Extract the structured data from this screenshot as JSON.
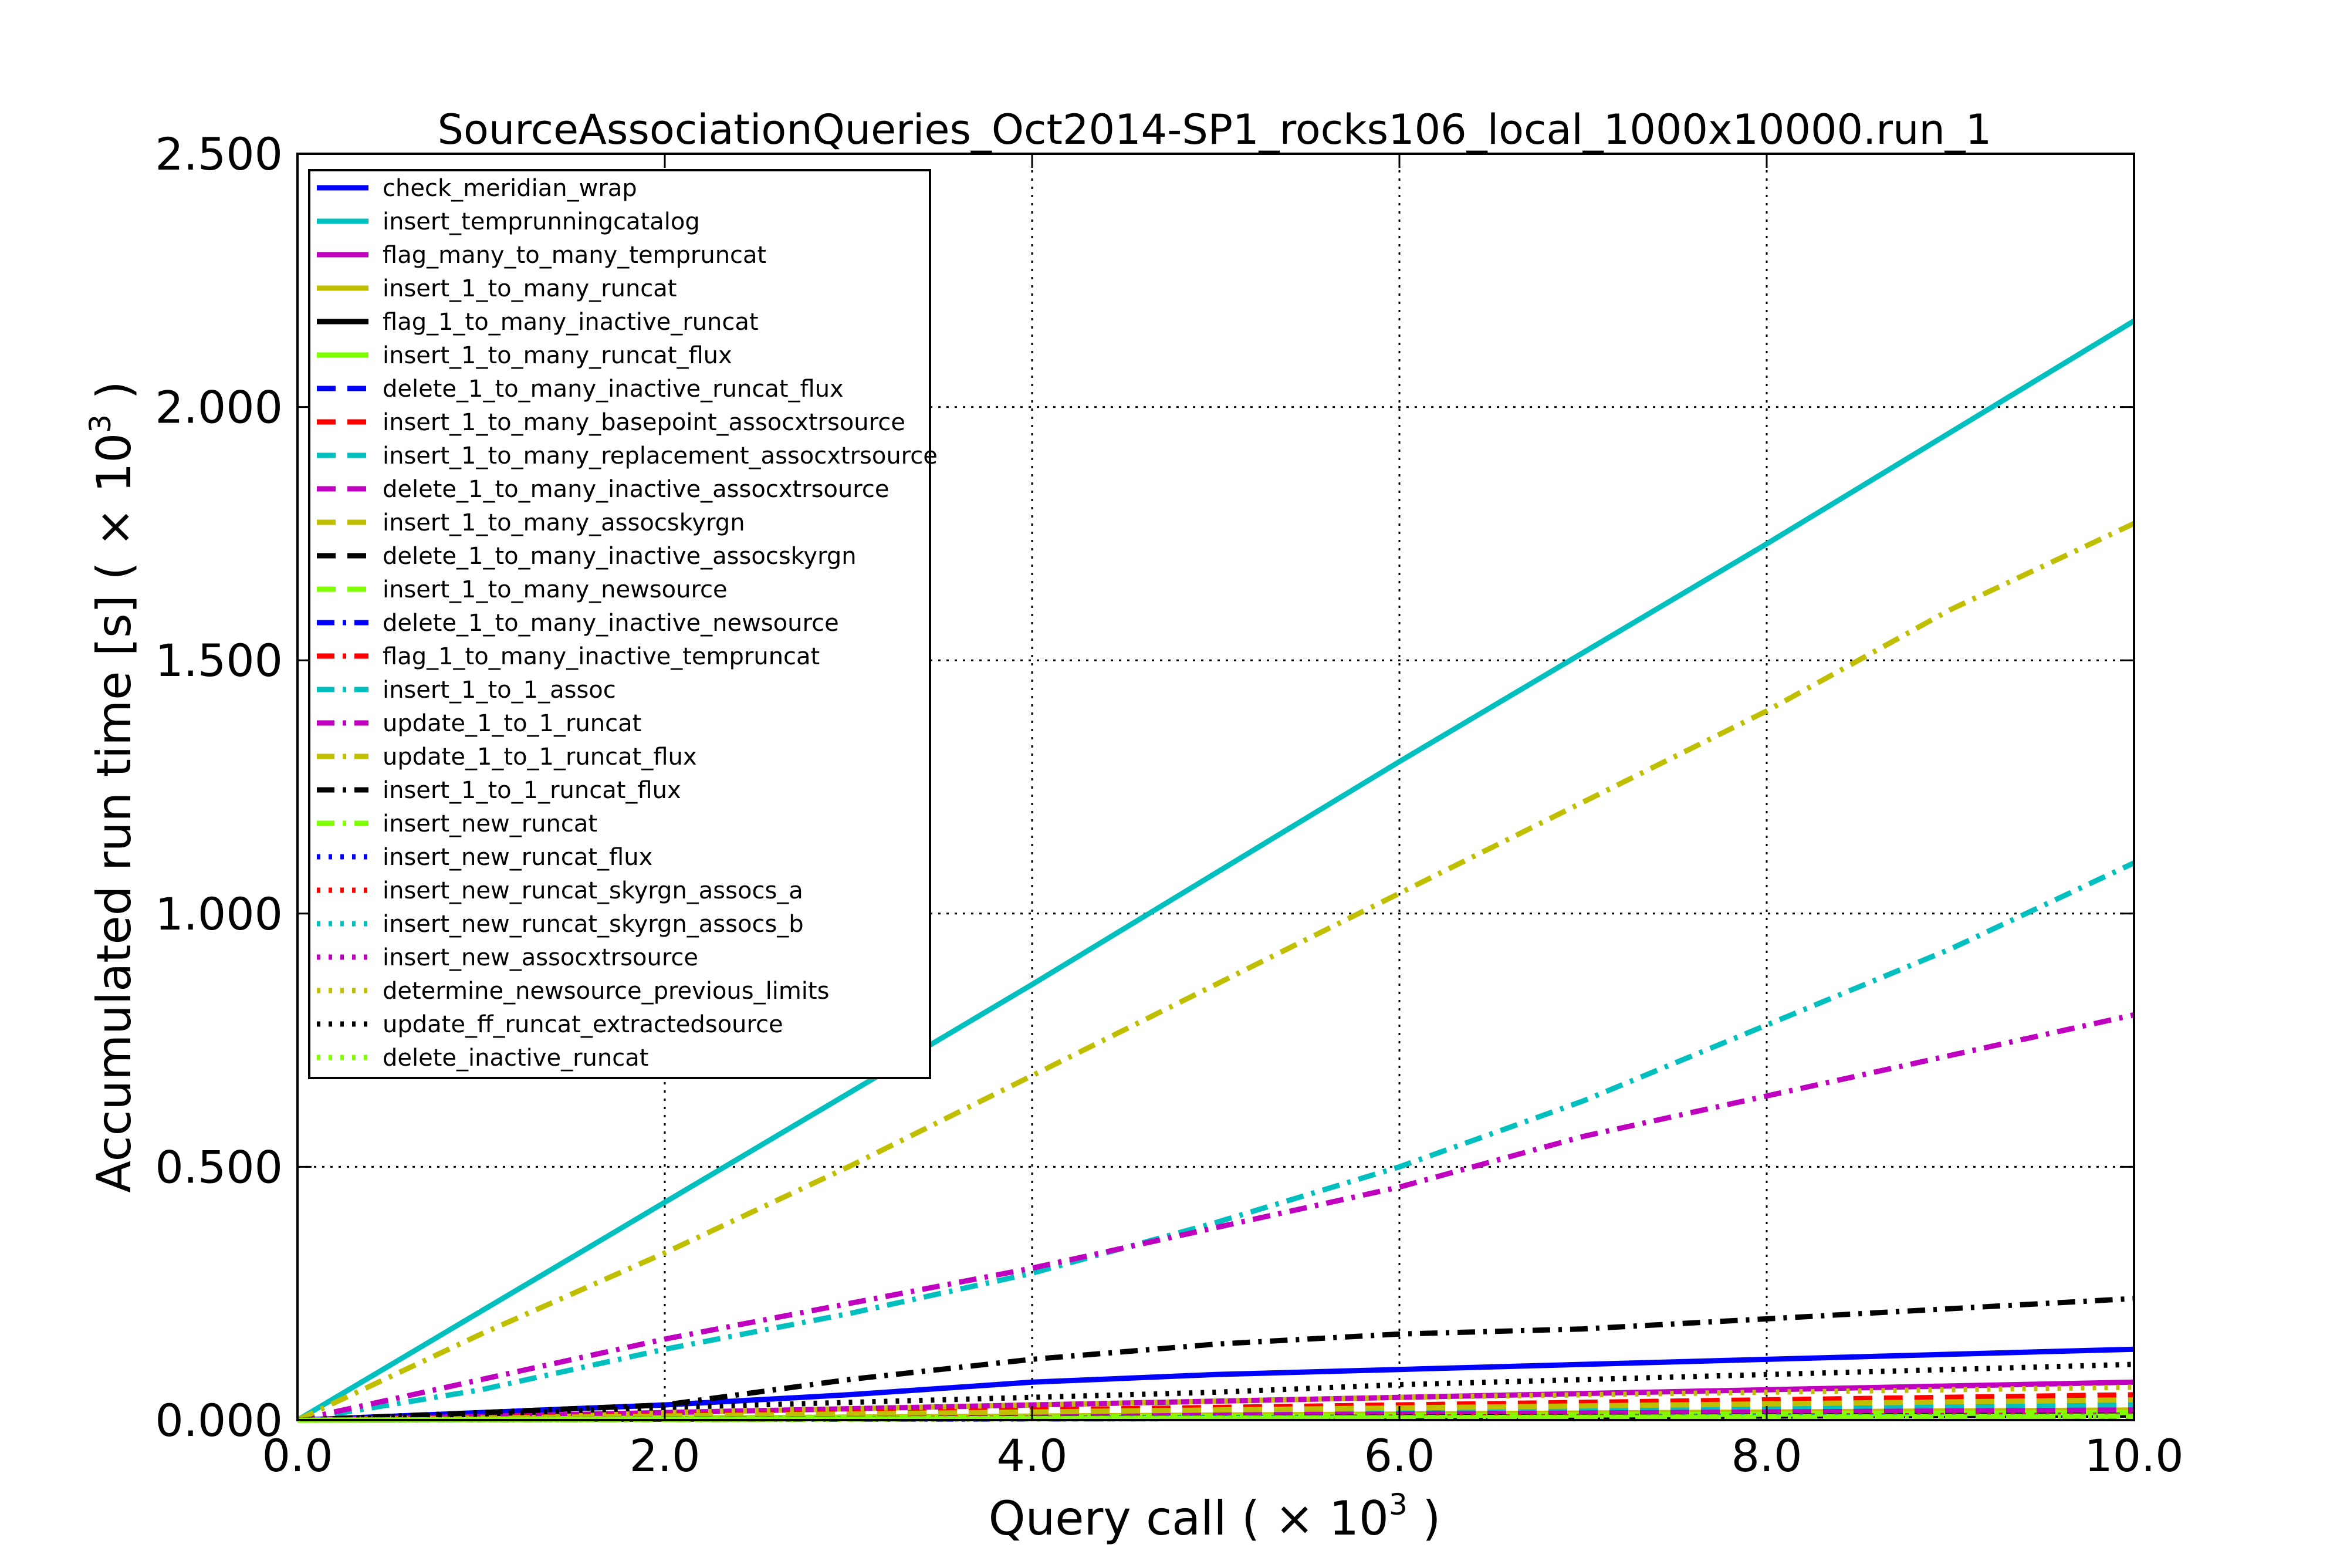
{
  "chart_data": {
    "type": "line",
    "title": "SourceAssociationQueries_Oct2014-SP1_rocks106_local_1000x10000.run_1",
    "xlabel": "Query call",
    "ylabel": "Accumulated run time [s]",
    "x_scale_label": "( × 10",
    "y_scale_label": "( × 10",
    "scale_exponent": "3",
    "scale_close": " )",
    "xlim": [
      0,
      10
    ],
    "ylim": [
      0,
      2.5
    ],
    "x_ticks": [
      0,
      2,
      4,
      6,
      8,
      10
    ],
    "y_ticks": [
      0,
      0.5,
      1.0,
      1.5,
      2.0,
      2.5
    ],
    "x_tick_labels": [
      "0.0",
      "2.0",
      "4.0",
      "6.0",
      "8.0",
      "10.0"
    ],
    "y_tick_labels": [
      "0.000",
      "0.500",
      "1.000",
      "1.500",
      "2.000",
      "2.500"
    ],
    "grid": true,
    "legend_position": "top-left",
    "series": [
      {
        "name": "check_meridian_wrap",
        "color": "#0000ff",
        "style": "solid",
        "x": [
          0,
          1,
          2,
          3,
          4,
          5,
          6,
          7,
          8,
          9,
          10
        ],
        "y": [
          0,
          0.015,
          0.03,
          0.05,
          0.075,
          0.09,
          0.1,
          0.11,
          0.12,
          0.13,
          0.14
        ]
      },
      {
        "name": "insert_temprunningcatalog",
        "color": "#00bfbf",
        "style": "solid",
        "x": [
          0,
          2,
          4,
          6,
          8,
          10
        ],
        "y": [
          0,
          0.43,
          0.86,
          1.3,
          1.73,
          2.17
        ]
      },
      {
        "name": "flag_many_to_many_tempruncat",
        "color": "#bf00bf",
        "style": "solid",
        "x": [
          0,
          2,
          4,
          6,
          8,
          10
        ],
        "y": [
          0,
          0.015,
          0.03,
          0.045,
          0.06,
          0.075
        ]
      },
      {
        "name": "insert_1_to_many_runcat",
        "color": "#bfbf00",
        "style": "solid",
        "x": [
          0,
          5,
          10
        ],
        "y": [
          0,
          0.01,
          0.02
        ]
      },
      {
        "name": "flag_1_to_many_inactive_runcat",
        "color": "#000000",
        "style": "solid",
        "x": [
          0,
          5,
          10
        ],
        "y": [
          0,
          0.005,
          0.01
        ]
      },
      {
        "name": "insert_1_to_many_runcat_flux",
        "color": "#7fff00",
        "style": "solid",
        "x": [
          0,
          5,
          10
        ],
        "y": [
          0,
          0.007,
          0.015
        ]
      },
      {
        "name": "delete_1_to_many_inactive_runcat_flux",
        "color": "#0000ff",
        "style": "dashed",
        "x": [
          0,
          5,
          10
        ],
        "y": [
          0,
          0.004,
          0.008
        ]
      },
      {
        "name": "insert_1_to_many_basepoint_assocxtrsource",
        "color": "#ff0000",
        "style": "dashed",
        "x": [
          0,
          5,
          10
        ],
        "y": [
          0,
          0.025,
          0.05
        ]
      },
      {
        "name": "insert_1_to_many_replacement_assocxtrsource",
        "color": "#00bfbf",
        "style": "dashed",
        "x": [
          0,
          5,
          10
        ],
        "y": [
          0,
          0.015,
          0.03
        ]
      },
      {
        "name": "delete_1_to_many_inactive_assocxtrsource",
        "color": "#bf00bf",
        "style": "dashed",
        "x": [
          0,
          5,
          10
        ],
        "y": [
          0,
          0.01,
          0.02
        ]
      },
      {
        "name": "insert_1_to_many_assocskyrgn",
        "color": "#bfbf00",
        "style": "dashed",
        "x": [
          0,
          5,
          10
        ],
        "y": [
          0,
          0.02,
          0.04
        ]
      },
      {
        "name": "delete_1_to_many_inactive_assocskyrgn",
        "color": "#000000",
        "style": "dashed",
        "x": [
          0,
          5,
          10
        ],
        "y": [
          0,
          0.005,
          0.01
        ]
      },
      {
        "name": "insert_1_to_many_newsource",
        "color": "#7fff00",
        "style": "dashed",
        "x": [
          0,
          5,
          10
        ],
        "y": [
          0,
          0.004,
          0.008
        ]
      },
      {
        "name": "delete_1_to_many_inactive_newsource",
        "color": "#0000ff",
        "style": "dashdot",
        "x": [
          0,
          5,
          10
        ],
        "y": [
          0,
          0.003,
          0.006
        ]
      },
      {
        "name": "flag_1_to_many_inactive_tempruncat",
        "color": "#ff0000",
        "style": "dashdot",
        "x": [
          0,
          5,
          10
        ],
        "y": [
          0,
          0.004,
          0.008
        ]
      },
      {
        "name": "insert_1_to_1_assoc",
        "color": "#00bfbf",
        "style": "dashdot",
        "x": [
          0,
          1,
          2,
          3,
          4,
          5,
          6,
          7,
          8,
          9,
          10
        ],
        "y": [
          0,
          0.06,
          0.14,
          0.21,
          0.29,
          0.39,
          0.5,
          0.63,
          0.78,
          0.93,
          1.1
        ]
      },
      {
        "name": "update_1_to_1_runcat",
        "color": "#bf00bf",
        "style": "dashdot",
        "x": [
          0,
          1,
          2,
          3,
          4,
          5,
          6,
          7,
          8,
          9,
          10
        ],
        "y": [
          0,
          0.08,
          0.16,
          0.23,
          0.3,
          0.38,
          0.46,
          0.56,
          0.64,
          0.72,
          0.8
        ]
      },
      {
        "name": "update_1_to_1_runcat_flux",
        "color": "#bfbf00",
        "style": "dashdot",
        "x": [
          0,
          1,
          2,
          3,
          4,
          5,
          6,
          7,
          8,
          9,
          10
        ],
        "y": [
          0,
          0.17,
          0.33,
          0.5,
          0.68,
          0.86,
          1.04,
          1.22,
          1.4,
          1.6,
          1.77
        ]
      },
      {
        "name": "insert_1_to_1_runcat_flux",
        "color": "#000000",
        "style": "dashdot",
        "x": [
          0,
          1,
          2,
          3,
          4,
          5,
          6,
          7,
          8,
          9,
          10
        ],
        "y": [
          0,
          0.015,
          0.03,
          0.08,
          0.12,
          0.15,
          0.17,
          0.18,
          0.2,
          0.22,
          0.24
        ]
      },
      {
        "name": "insert_new_runcat",
        "color": "#7fff00",
        "style": "dashdot",
        "x": [
          0,
          5,
          10
        ],
        "y": [
          0,
          0.004,
          0.008
        ]
      },
      {
        "name": "insert_new_runcat_flux",
        "color": "#0000ff",
        "style": "dotted",
        "x": [
          0,
          5,
          10
        ],
        "y": [
          0,
          0.003,
          0.006
        ]
      },
      {
        "name": "insert_new_runcat_skyrgn_assocs_a",
        "color": "#ff0000",
        "style": "dotted",
        "x": [
          0,
          5,
          10
        ],
        "y": [
          0,
          0.005,
          0.01
        ]
      },
      {
        "name": "insert_new_runcat_skyrgn_assocs_b",
        "color": "#00bfbf",
        "style": "dotted",
        "x": [
          0,
          5,
          10
        ],
        "y": [
          0,
          0.004,
          0.008
        ]
      },
      {
        "name": "insert_new_assocxtrsource",
        "color": "#bf00bf",
        "style": "dotted",
        "x": [
          0,
          5,
          10
        ],
        "y": [
          0,
          0.003,
          0.006
        ]
      },
      {
        "name": "determine_newsource_previous_limits",
        "color": "#bfbf00",
        "style": "dotted",
        "x": [
          0,
          2,
          4,
          6,
          8,
          10
        ],
        "y": [
          0,
          0.015,
          0.03,
          0.045,
          0.055,
          0.065
        ]
      },
      {
        "name": "update_ff_runcat_extractedsource",
        "color": "#000000",
        "style": "dotted",
        "x": [
          0,
          1,
          2,
          3,
          4,
          5,
          6,
          7,
          8,
          9,
          10
        ],
        "y": [
          0,
          0.012,
          0.025,
          0.035,
          0.045,
          0.055,
          0.07,
          0.08,
          0.09,
          0.1,
          0.11
        ]
      },
      {
        "name": "delete_inactive_runcat",
        "color": "#7fff00",
        "style": "dotted",
        "x": [
          0,
          5,
          10
        ],
        "y": [
          0,
          0.003,
          0.006
        ]
      }
    ]
  }
}
